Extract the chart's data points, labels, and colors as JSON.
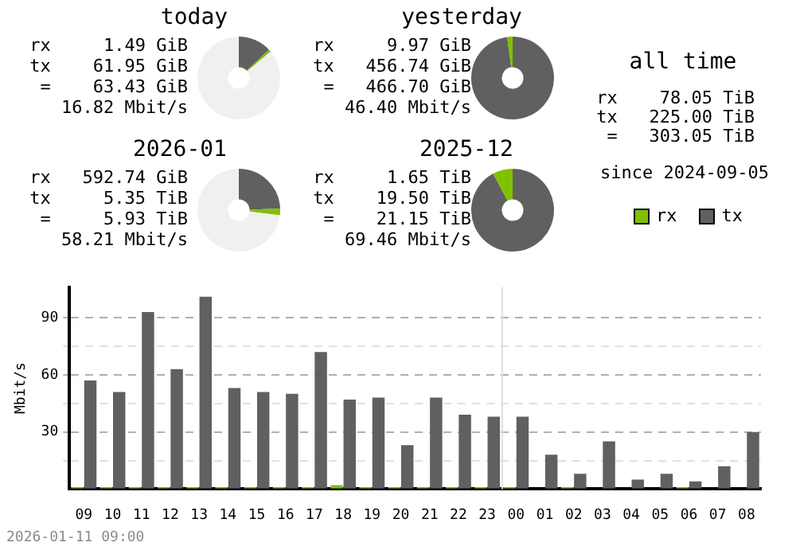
{
  "chart_data": [
    {
      "type": "donut",
      "title": "today",
      "categories": [
        null,
        null,
        null
      ],
      "values": [
        13,
        1,
        86
      ],
      "colors": [
        "#606060",
        "#80c000",
        "#f0f0f0"
      ],
      "annotations": [
        "rx     1.49 GiB",
        "tx    61.95 GiB",
        "=    63.43 GiB",
        "16.82 Mbit/s"
      ]
    },
    {
      "type": "donut",
      "title": "yesterday",
      "categories": [
        null,
        null
      ],
      "values": [
        97.9,
        2.1
      ],
      "colors": [
        "#606060",
        "#80c000"
      ],
      "annotations": [
        "rx     9.97 GiB",
        "tx   456.74 GiB",
        "=   466.70 GiB",
        "46.40 Mbit/s"
      ]
    },
    {
      "type": "donut",
      "title": "2026-01",
      "categories": [
        null,
        null,
        null
      ],
      "values": [
        24.4,
        2.6,
        73
      ],
      "colors": [
        "#606060",
        "#80c000",
        "#f0f0f0"
      ],
      "annotations": [
        "rx   592.74 GiB",
        "tx     5.35 TiB",
        "=     5.93 TiB",
        "58.21 Mbit/s"
      ]
    },
    {
      "type": "donut",
      "title": "2025-12",
      "categories": [
        null,
        null
      ],
      "values": [
        92.2,
        7.8
      ],
      "colors": [
        "#606060",
        "#80c000"
      ],
      "annotations": [
        "rx     1.65 TiB",
        "tx    19.50 TiB",
        "=    21.15 TiB",
        "69.46 Mbit/s"
      ]
    },
    {
      "type": "other",
      "title": "all time",
      "annotations": [
        "rx    78.05 TiB",
        "tx   225.00 TiB",
        "=   303.05 TiB",
        "since 2024-09-05"
      ]
    },
    {
      "type": "bar",
      "ylabel": "Mbit/s",
      "categories": [
        "09",
        "10",
        "11",
        "12",
        "13",
        "14",
        "15",
        "16",
        "17",
        "18",
        "19",
        "20",
        "21",
        "22",
        "23",
        "00",
        "01",
        "02",
        "03",
        "04",
        "05",
        "06",
        "07",
        "08"
      ],
      "series": [
        {
          "name": "rx",
          "color": "#80c000",
          "values": [
            1,
            1,
            1,
            1,
            1,
            1,
            1,
            1,
            1,
            2,
            1,
            1,
            1,
            1,
            1,
            1,
            0,
            1,
            0,
            0,
            0,
            1,
            0,
            0
          ]
        },
        {
          "name": "tx",
          "color": "#606060",
          "values": [
            57,
            51,
            93,
            63,
            101,
            53,
            51,
            50,
            72,
            47,
            48,
            23,
            48,
            39,
            38,
            38,
            18,
            8,
            25,
            5,
            8,
            4,
            12,
            30
          ]
        }
      ],
      "ylim": [
        0,
        106
      ],
      "yticks": [
        {
          "value": 0,
          "label": null
        },
        {
          "value": 15,
          "label": null
        },
        30,
        {
          "value": 45,
          "label": null
        },
        60,
        {
          "value": 75,
          "label": null
        },
        90
      ],
      "grid": "y",
      "legend": "top right",
      "ref_lines": [
        {
          "axis": "x",
          "value": "00",
          "color": "#e0e0e0"
        }
      ],
      "annotations": [
        "2026-01-11 09:00"
      ]
    }
  ]
}
